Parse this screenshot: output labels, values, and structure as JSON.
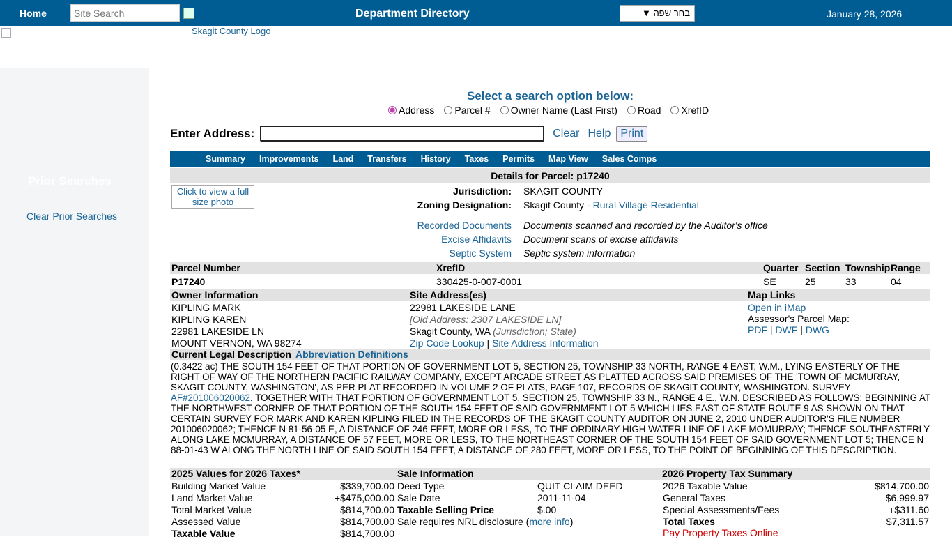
{
  "topbar": {
    "home": "Home",
    "search_placeholder": "Site Search",
    "title": "Department Directory",
    "language": "בחר שפה ▼",
    "date": "January 28, 2026"
  },
  "logo_alt": "Skagit County Logo",
  "sidebar": {
    "heading": "Prior Searches",
    "clear": "Clear Prior Searches"
  },
  "search": {
    "heading": "Select a search option below:",
    "options": [
      "Address",
      "Parcel #",
      "Owner Name (Last First)",
      "Road",
      "XrefID"
    ],
    "selected": "Address",
    "label": "Enter Address:",
    "value": "",
    "clear": "Clear",
    "help": "Help",
    "print": "Print"
  },
  "tabs": [
    "Summary",
    "Improvements",
    "Land",
    "Transfers",
    "History",
    "Taxes",
    "Permits",
    "Map View",
    "Sales Comps"
  ],
  "details": {
    "title": "Details for Parcel: p17240",
    "photo_alt": "Click to view a full size photo",
    "jurisdiction_label": "Jurisdiction:",
    "jurisdiction": "SKAGIT COUNTY",
    "zoning_label": "Zoning Designation:",
    "zoning_prefix": "Skagit County - ",
    "zoning_link": "Rural Village Residential",
    "docs": [
      {
        "link": "Recorded Documents",
        "desc": "Documents scanned and recorded by the Auditor's office"
      },
      {
        "link": "Excise Affidavits",
        "desc": "Document scans of excise affidavits"
      },
      {
        "link": "Septic System",
        "desc": "Septic system information"
      }
    ]
  },
  "parcel": {
    "headers": [
      "Parcel Number",
      "XrefID",
      "Quarter",
      "Section",
      "Township",
      "Range"
    ],
    "values": [
      "P17240",
      "330425-0-007-0001",
      "SE",
      "25",
      "33",
      "04"
    ]
  },
  "owner": {
    "header": "Owner Information",
    "lines": [
      "KIPLING MARK",
      "KIPLING KAREN",
      "22981 LAKESIDE LN",
      "MOUNT VERNON, WA  98274"
    ]
  },
  "site": {
    "header": "Site Address(es)",
    "line1": "22981  LAKESIDE LANE",
    "old": "[Old Address: 2307  LAKESIDE LN]",
    "city": "Skagit County, WA ",
    "city_note": "(Jurisdiction; State)",
    "zip": "Zip Code Lookup",
    "sep": " | ",
    "info": "Site Address Information"
  },
  "maps": {
    "header": "Map Links",
    "imap": "Open in iMap",
    "parcel_map": "Assessor's Parcel Map:",
    "pdf": "PDF",
    "dwf": "DWF",
    "dwg": "DWG",
    "sep": " | "
  },
  "legal": {
    "header": "Current Legal Description",
    "abbr": "Abbreviation Definitions",
    "text1": "(0.3422 ac) THE SOUTH 154 FEET OF THAT PORTION OF GOVERNMENT LOT 5, SECTION 25, TOWNSHIP 33 NORTH, RANGE 4 EAST, W.M., LYING EASTERLY OF THE RIGHT OF WAY OF THE NORTHERN PACIFIC RAILWAY COMPANY, EXCEPT ARCADE STREET AS PLATTED ACROSS SAID PREMISES OF THE 'TOWN OF MCMURRAY, SKAGIT COUNTY, WASHINGTON', AS PER PLAT RECORDED IN VOLUME 2 OF PLATS, PAGE 107, RECORDS OF SKAGIT COUNTY, WASHINGTON. SURVEY ",
    "survey_link": "AF#201006020062",
    "text2": ". TOGETHER WITH THAT PORTION OF GOVERNMENT LOT 5, SECTION 25, TOWNSHIP 33 N., RANGE 4 E., W.N. DESCRIBED AS FOLLOWS: BEGINNING AT THE NORTHWEST CORNER OF THAT PORTION OF THE SOUTH 154 FEET OF SAID GOVERNMENT LOT 5 WHICH LIES EAST OF STATE ROUTE 9 AS SHOWN ON THAT CERTAIN SURVEY FOR MARK AND KAREN KIPLING FILED IN THE RECORDS OF THE SKAGIT COUNTY AUDITOR ON JUNE 2, 2010 UNDER AUDITOR'S FILE NUMBER 201006020062; THENCE N 81-56-05 E, A DISTANCE OF 246 FEET, MORE OR LESS, TO THE ORDINARY HIGH WATER LINE OF LAKE MOMURRAY; THENCE SOUTHEASTERLY ALONG LAKE MCMURRAY, A DISTANCE OF 57 FEET, MORE OR LESS, TO THE NORTHEAST CORNER OF THE SOUTH 154 FEET OF SAID GOVERNMENT LOT 5; THENCE N 88-01-43 W ALONG THE NORTH LINE OF SAID SOUTH 154 FEET, A DISTANCE OF 280 FEET, MORE OR LESS, TO THE POINT OF BEGINNING OF THIS DESCRIPTION."
  },
  "values": {
    "header": "2025 Values for 2026 Taxes*",
    "rows": [
      {
        "label": "Building Market Value",
        "value": "$339,700.00"
      },
      {
        "label": "Land Market Value",
        "value": "+$475,000.00"
      },
      {
        "label": "Total Market Value",
        "value": "$814,700.00"
      },
      {
        "label": "Assessed Value",
        "value": "$814,700.00"
      },
      {
        "label": "Taxable Value",
        "value": "$814,700.00"
      }
    ]
  },
  "sale": {
    "header": "Sale Information",
    "rows": [
      {
        "label": "Deed Type",
        "value": "QUIT CLAIM DEED"
      },
      {
        "label": "Sale Date",
        "value": "2011-11-04"
      },
      {
        "label": "Taxable Selling Price",
        "value": "$.00"
      }
    ],
    "nrl": "Sale requires NRL disclosure (",
    "nrl_link": "more info",
    "nrl_end": ")"
  },
  "taxsum": {
    "header": "2026 Property Tax Summary",
    "rows": [
      {
        "label": "2026 Taxable Value",
        "value": "$814,700.00"
      },
      {
        "label": "General Taxes",
        "value": "$6,999.97"
      },
      {
        "label": "Special Assessments/Fees",
        "value": "+$311.60"
      },
      {
        "label": "Total Taxes",
        "value": "$7,311.57"
      }
    ],
    "pay": "Pay Property Taxes Online"
  }
}
